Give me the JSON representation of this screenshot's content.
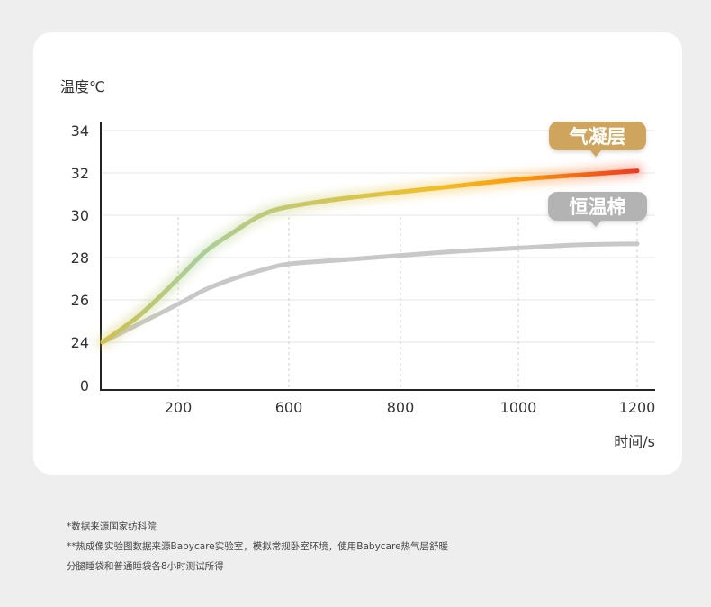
{
  "chart_data": {
    "type": "line",
    "ylabel": "温度℃",
    "xlabel": "时间/s",
    "x_ticks": [
      "200",
      "600",
      "800",
      "1000",
      "1200"
    ],
    "y_ticks": [
      "34",
      "32",
      "30",
      "28",
      "26",
      "24",
      "0"
    ],
    "grid": true,
    "series": [
      {
        "name": "气凝层",
        "x": [
          0,
          100,
          200,
          300,
          400,
          500,
          600,
          700,
          800,
          900,
          1000,
          1100,
          1200
        ],
        "values": [
          24.0,
          25.3,
          27.0,
          28.3,
          29.2,
          30.0,
          30.4,
          30.8,
          31.1,
          31.4,
          31.7,
          31.9,
          32.1
        ],
        "label_color": "#cfa45c",
        "colors": [
          "#d2c14a",
          "#a9cf98",
          "#f0bf2a",
          "#fb9a0a",
          "#ec3a20"
        ]
      },
      {
        "name": "恒温棉",
        "x": [
          0,
          100,
          200,
          300,
          400,
          500,
          600,
          700,
          800,
          900,
          1000,
          1100,
          1200
        ],
        "values": [
          24.0,
          24.9,
          25.8,
          26.5,
          27.0,
          27.4,
          27.7,
          27.9,
          28.1,
          28.3,
          28.45,
          28.6,
          28.65
        ],
        "label_color": "#b3b3b3",
        "colors": [
          "#c8c8c8"
        ]
      }
    ]
  },
  "footnotes": [
    "*数据来源国家纺科院",
    "**热成像实验图数据来源Babycare实验室，模拟常规卧室环境，使用Babycare热气层舒暖",
    "分腿睡袋和普通睡袋各8小时测试所得"
  ]
}
